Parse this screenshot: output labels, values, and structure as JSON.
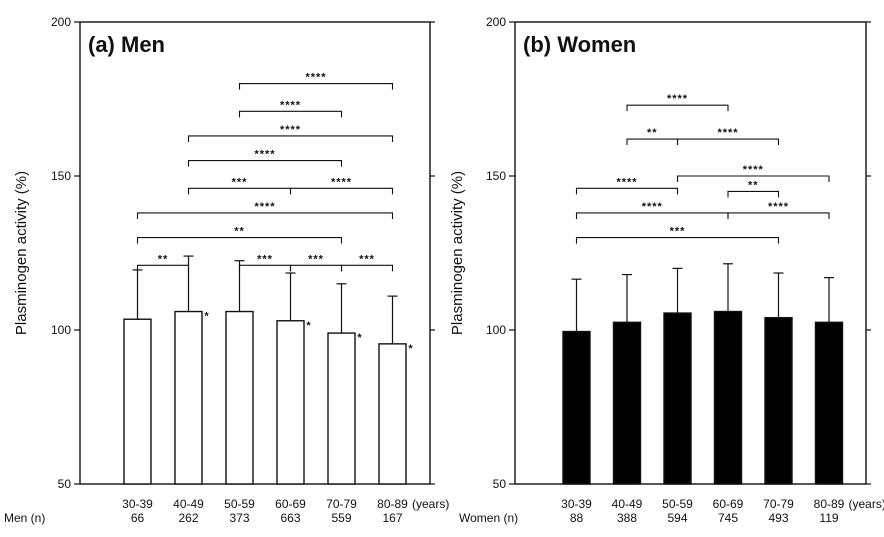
{
  "chart_data": [
    {
      "type": "bar",
      "title": "(a) Men",
      "ylabel": "Plasminogen activity (%)",
      "xlabel": "",
      "ylim": [
        50,
        200
      ],
      "yticks": [
        50,
        100,
        150,
        200
      ],
      "categories": [
        "30-39",
        "40-49",
        "50-59",
        "60-69",
        "70-79",
        "80-89"
      ],
      "x_unit": "(years)",
      "bar_fill": "#ffffff",
      "series": [
        {
          "values": [
            103.5,
            106,
            106,
            103,
            99,
            95.5
          ],
          "error": [
            16,
            18,
            16.5,
            15.5,
            16,
            15.5
          ]
        }
      ],
      "bar_markers": [
        "",
        "*",
        "",
        "*",
        "*",
        "*"
      ],
      "n_label": "Men (n)",
      "n_values": [
        "66",
        "262",
        "373",
        "663",
        "559",
        "167"
      ],
      "significance": [
        {
          "from": 2,
          "to": 5,
          "y": 180,
          "label": "****"
        },
        {
          "from": 2,
          "to": 4,
          "y": 171,
          "label": "****"
        },
        {
          "from": 1,
          "to": 5,
          "y": 163,
          "label": "****"
        },
        {
          "from": 1,
          "to": 4,
          "y": 155,
          "label": "****"
        },
        {
          "from": 1,
          "to": 3,
          "y": 146,
          "label": "***"
        },
        {
          "from": 3,
          "to": 5,
          "y": 146,
          "label": "****"
        },
        {
          "from": 0,
          "to": 5,
          "y": 138,
          "label": "****"
        },
        {
          "from": 0,
          "to": 4,
          "y": 130,
          "label": "**"
        },
        {
          "from": 0,
          "to": 1,
          "y": 121,
          "label": "**"
        },
        {
          "from": 2,
          "to": 3,
          "y": 121,
          "label": "***"
        },
        {
          "from": 3,
          "to": 4,
          "y": 121,
          "label": "***"
        },
        {
          "from": 4,
          "to": 5,
          "y": 121,
          "label": "***"
        }
      ]
    },
    {
      "type": "bar",
      "title": "(b) Women",
      "ylabel": "Plasminogen activity (%)",
      "xlabel": "",
      "ylim": [
        50,
        200
      ],
      "yticks": [
        50,
        100,
        150,
        200
      ],
      "categories": [
        "30-39",
        "40-49",
        "50-59",
        "60-69",
        "70-79",
        "80-89"
      ],
      "x_unit": "(years)",
      "bar_fill": "#000000",
      "series": [
        {
          "values": [
            99.5,
            102.5,
            105.5,
            106,
            104,
            102.5
          ],
          "error": [
            17,
            15.5,
            14.5,
            15.5,
            14.5,
            14.5
          ]
        }
      ],
      "bar_markers": [
        "",
        "",
        "",
        "",
        "",
        ""
      ],
      "n_label": "Women (n)",
      "n_values": [
        "88",
        "388",
        "594",
        "745",
        "493",
        "119"
      ],
      "significance": [
        {
          "from": 1,
          "to": 3,
          "y": 173,
          "label": "****"
        },
        {
          "from": 1,
          "to": 2,
          "y": 162,
          "label": "**"
        },
        {
          "from": 2,
          "to": 4,
          "y": 162,
          "label": "****"
        },
        {
          "from": 2,
          "to": 5,
          "y": 150,
          "label": "****"
        },
        {
          "from": 0,
          "to": 2,
          "y": 146,
          "label": "****"
        },
        {
          "from": 3,
          "to": 4,
          "y": 145,
          "label": "**"
        },
        {
          "from": 0,
          "to": 3,
          "y": 138,
          "label": "****"
        },
        {
          "from": 3,
          "to": 5,
          "y": 138,
          "label": "****"
        },
        {
          "from": 0,
          "to": 4,
          "y": 130,
          "label": "***"
        }
      ]
    }
  ]
}
